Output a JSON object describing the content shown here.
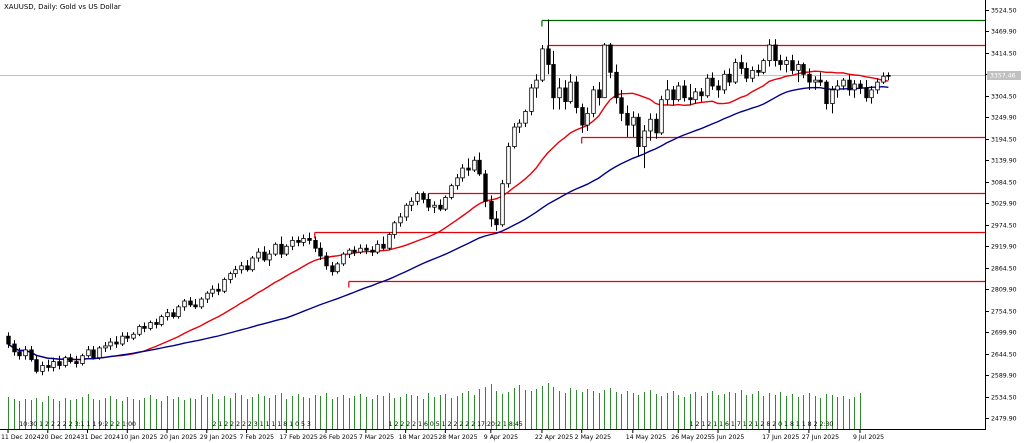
{
  "chart_data": {
    "type": "candlestick",
    "title": "XAUUSD, Daily:  Gold vs US Dollar",
    "current_price": "3357.46",
    "ylim": [
      2450,
      3550
    ],
    "y_ticks": [
      3524.5,
      3469.9,
      3414.5,
      3359.9,
      3304.5,
      3249.9,
      3194.5,
      3139.9,
      3084.5,
      3029.9,
      2974.5,
      2919.9,
      2864.5,
      2809.9,
      2754.5,
      2699.9,
      2644.5,
      2589.9,
      2534.5,
      2479.9
    ],
    "y_tick_labels": [
      "3524.50",
      "3469.90",
      "3414.50",
      "3359.90",
      "3304.50",
      "3249.90",
      "3194.50",
      "3139.90",
      "3084.50",
      "3029.90",
      "2974.50",
      "2919.90",
      "2864.50",
      "2809.90",
      "2754.50",
      "2699.90",
      "2644.50",
      "2589.90",
      "2534.50",
      "2479.90"
    ],
    "x_tick_labels": [
      "11 Dec 2024",
      "20 Dec 2024",
      "31 Dec 2024",
      "10 Jan 2025",
      "20 Jan 2025",
      "29 Jan 2025",
      "7 Feb 2025",
      "17 Feb 2025",
      "26 Feb 2025",
      "7 Mar 2025",
      "18 Mar 2025",
      "28 Mar 2025",
      "9 Apr 2025",
      "22 Apr 2025",
      "2 May 2025",
      "14 May 2025",
      "26 May 2025",
      "5 Jun 2025",
      "17 Jun 2025",
      "27 Jun 2025",
      "9 Jul 2025"
    ],
    "x_tick_index": [
      0,
      7,
      14,
      21,
      28,
      35,
      42,
      49,
      56,
      63,
      70,
      77,
      85,
      94,
      101,
      110,
      118,
      125,
      134,
      141,
      150
    ],
    "candles": [
      {
        "o": 2690,
        "h": 2700,
        "l": 2660,
        "c": 2670
      },
      {
        "o": 2670,
        "h": 2680,
        "l": 2640,
        "c": 2650
      },
      {
        "o": 2650,
        "h": 2660,
        "l": 2630,
        "c": 2640
      },
      {
        "o": 2640,
        "h": 2665,
        "l": 2630,
        "c": 2655
      },
      {
        "o": 2655,
        "h": 2665,
        "l": 2625,
        "c": 2630
      },
      {
        "o": 2630,
        "h": 2640,
        "l": 2595,
        "c": 2600
      },
      {
        "o": 2600,
        "h": 2625,
        "l": 2590,
        "c": 2615
      },
      {
        "o": 2615,
        "h": 2630,
        "l": 2600,
        "c": 2610
      },
      {
        "o": 2610,
        "h": 2635,
        "l": 2600,
        "c": 2625
      },
      {
        "o": 2625,
        "h": 2640,
        "l": 2605,
        "c": 2615
      },
      {
        "o": 2615,
        "h": 2640,
        "l": 2610,
        "c": 2635
      },
      {
        "o": 2635,
        "h": 2645,
        "l": 2620,
        "c": 2625
      },
      {
        "o": 2625,
        "h": 2640,
        "l": 2610,
        "c": 2620
      },
      {
        "o": 2620,
        "h": 2645,
        "l": 2615,
        "c": 2640
      },
      {
        "o": 2640,
        "h": 2665,
        "l": 2635,
        "c": 2655
      },
      {
        "o": 2655,
        "h": 2665,
        "l": 2630,
        "c": 2635
      },
      {
        "o": 2635,
        "h": 2665,
        "l": 2630,
        "c": 2660
      },
      {
        "o": 2660,
        "h": 2675,
        "l": 2650,
        "c": 2665
      },
      {
        "o": 2665,
        "h": 2685,
        "l": 2655,
        "c": 2675
      },
      {
        "o": 2675,
        "h": 2690,
        "l": 2660,
        "c": 2670
      },
      {
        "o": 2670,
        "h": 2700,
        "l": 2665,
        "c": 2690
      },
      {
        "o": 2690,
        "h": 2700,
        "l": 2675,
        "c": 2685
      },
      {
        "o": 2685,
        "h": 2700,
        "l": 2680,
        "c": 2695
      },
      {
        "o": 2695,
        "h": 2720,
        "l": 2690,
        "c": 2715
      },
      {
        "o": 2715,
        "h": 2725,
        "l": 2700,
        "c": 2710
      },
      {
        "o": 2710,
        "h": 2730,
        "l": 2705,
        "c": 2725
      },
      {
        "o": 2725,
        "h": 2735,
        "l": 2710,
        "c": 2720
      },
      {
        "o": 2720,
        "h": 2745,
        "l": 2715,
        "c": 2740
      },
      {
        "o": 2740,
        "h": 2760,
        "l": 2730,
        "c": 2750
      },
      {
        "o": 2750,
        "h": 2760,
        "l": 2735,
        "c": 2740
      },
      {
        "o": 2740,
        "h": 2770,
        "l": 2735,
        "c": 2765
      },
      {
        "o": 2765,
        "h": 2785,
        "l": 2755,
        "c": 2780
      },
      {
        "o": 2780,
        "h": 2790,
        "l": 2765,
        "c": 2770
      },
      {
        "o": 2770,
        "h": 2785,
        "l": 2760,
        "c": 2765
      },
      {
        "o": 2765,
        "h": 2790,
        "l": 2760,
        "c": 2785
      },
      {
        "o": 2785,
        "h": 2805,
        "l": 2775,
        "c": 2800
      },
      {
        "o": 2800,
        "h": 2820,
        "l": 2790,
        "c": 2810
      },
      {
        "o": 2810,
        "h": 2825,
        "l": 2795,
        "c": 2805
      },
      {
        "o": 2805,
        "h": 2840,
        "l": 2800,
        "c": 2835
      },
      {
        "o": 2835,
        "h": 2855,
        "l": 2825,
        "c": 2850
      },
      {
        "o": 2850,
        "h": 2870,
        "l": 2840,
        "c": 2860
      },
      {
        "o": 2860,
        "h": 2880,
        "l": 2850,
        "c": 2870
      },
      {
        "o": 2870,
        "h": 2885,
        "l": 2855,
        "c": 2860
      },
      {
        "o": 2860,
        "h": 2895,
        "l": 2855,
        "c": 2890
      },
      {
        "o": 2890,
        "h": 2915,
        "l": 2880,
        "c": 2905
      },
      {
        "o": 2905,
        "h": 2920,
        "l": 2880,
        "c": 2885
      },
      {
        "o": 2885,
        "h": 2910,
        "l": 2870,
        "c": 2900
      },
      {
        "o": 2900,
        "h": 2930,
        "l": 2895,
        "c": 2925
      },
      {
        "o": 2925,
        "h": 2945,
        "l": 2890,
        "c": 2900
      },
      {
        "o": 2900,
        "h": 2925,
        "l": 2895,
        "c": 2920
      },
      {
        "o": 2920,
        "h": 2945,
        "l": 2910,
        "c": 2935
      },
      {
        "o": 2935,
        "h": 2945,
        "l": 2920,
        "c": 2930
      },
      {
        "o": 2930,
        "h": 2950,
        "l": 2920,
        "c": 2940
      },
      {
        "o": 2940,
        "h": 2955,
        "l": 2925,
        "c": 2935
      },
      {
        "o": 2935,
        "h": 2945,
        "l": 2905,
        "c": 2915
      },
      {
        "o": 2915,
        "h": 2930,
        "l": 2885,
        "c": 2895
      },
      {
        "o": 2895,
        "h": 2905,
        "l": 2860,
        "c": 2870
      },
      {
        "o": 2870,
        "h": 2880,
        "l": 2845,
        "c": 2855
      },
      {
        "o": 2855,
        "h": 2880,
        "l": 2850,
        "c": 2875
      },
      {
        "o": 2875,
        "h": 2905,
        "l": 2870,
        "c": 2900
      },
      {
        "o": 2900,
        "h": 2915,
        "l": 2890,
        "c": 2910
      },
      {
        "o": 2910,
        "h": 2920,
        "l": 2895,
        "c": 2905
      },
      {
        "o": 2905,
        "h": 2925,
        "l": 2900,
        "c": 2915
      },
      {
        "o": 2915,
        "h": 2925,
        "l": 2900,
        "c": 2910
      },
      {
        "o": 2910,
        "h": 2920,
        "l": 2895,
        "c": 2905
      },
      {
        "o": 2905,
        "h": 2935,
        "l": 2900,
        "c": 2925
      },
      {
        "o": 2925,
        "h": 2945,
        "l": 2910,
        "c": 2915
      },
      {
        "o": 2915,
        "h": 2955,
        "l": 2910,
        "c": 2950
      },
      {
        "o": 2950,
        "h": 2985,
        "l": 2940,
        "c": 2980
      },
      {
        "o": 2980,
        "h": 3005,
        "l": 2970,
        "c": 2995
      },
      {
        "o": 2995,
        "h": 3030,
        "l": 2985,
        "c": 3025
      },
      {
        "o": 3025,
        "h": 3045,
        "l": 3010,
        "c": 3035
      },
      {
        "o": 3035,
        "h": 3060,
        "l": 3025,
        "c": 3055
      },
      {
        "o": 3055,
        "h": 3060,
        "l": 3030,
        "c": 3040
      },
      {
        "o": 3040,
        "h": 3055,
        "l": 3010,
        "c": 3020
      },
      {
        "o": 3020,
        "h": 3035,
        "l": 3005,
        "c": 3025
      },
      {
        "o": 3025,
        "h": 3040,
        "l": 3010,
        "c": 3015
      },
      {
        "o": 3015,
        "h": 3050,
        "l": 3010,
        "c": 3045
      },
      {
        "o": 3045,
        "h": 3080,
        "l": 3040,
        "c": 3075
      },
      {
        "o": 3075,
        "h": 3105,
        "l": 3065,
        "c": 3095
      },
      {
        "o": 3095,
        "h": 3130,
        "l": 3085,
        "c": 3120
      },
      {
        "o": 3120,
        "h": 3145,
        "l": 3100,
        "c": 3115
      },
      {
        "o": 3115,
        "h": 3150,
        "l": 3110,
        "c": 3140
      },
      {
        "o": 3140,
        "h": 3160,
        "l": 3100,
        "c": 3105
      },
      {
        "o": 3105,
        "h": 3115,
        "l": 3020,
        "c": 3035
      },
      {
        "o": 3035,
        "h": 3050,
        "l": 2970,
        "c": 2990
      },
      {
        "o": 2990,
        "h": 3010,
        "l": 2960,
        "c": 2975
      },
      {
        "o": 2975,
        "h": 3090,
        "l": 2970,
        "c": 3080
      },
      {
        "o": 3080,
        "h": 3185,
        "l": 3070,
        "c": 3175
      },
      {
        "o": 3175,
        "h": 3235,
        "l": 3170,
        "c": 3225
      },
      {
        "o": 3225,
        "h": 3245,
        "l": 3210,
        "c": 3235
      },
      {
        "o": 3235,
        "h": 3270,
        "l": 3225,
        "c": 3265
      },
      {
        "o": 3265,
        "h": 3335,
        "l": 3255,
        "c": 3325
      },
      {
        "o": 3325,
        "h": 3360,
        "l": 3300,
        "c": 3345
      },
      {
        "o": 3345,
        "h": 3435,
        "l": 3340,
        "c": 3425
      },
      {
        "o": 3425,
        "h": 3500,
        "l": 3360,
        "c": 3385
      },
      {
        "o": 3385,
        "h": 3420,
        "l": 3270,
        "c": 3300
      },
      {
        "o": 3300,
        "h": 3350,
        "l": 3270,
        "c": 3325
      },
      {
        "o": 3325,
        "h": 3345,
        "l": 3270,
        "c": 3290
      },
      {
        "o": 3290,
        "h": 3360,
        "l": 3285,
        "c": 3340
      },
      {
        "o": 3340,
        "h": 3355,
        "l": 3260,
        "c": 3275
      },
      {
        "o": 3275,
        "h": 3285,
        "l": 3210,
        "c": 3230
      },
      {
        "o": 3230,
        "h": 3275,
        "l": 3215,
        "c": 3260
      },
      {
        "o": 3260,
        "h": 3330,
        "l": 3250,
        "c": 3320
      },
      {
        "o": 3320,
        "h": 3340,
        "l": 3280,
        "c": 3300
      },
      {
        "o": 3300,
        "h": 3440,
        "l": 3300,
        "c": 3435
      },
      {
        "o": 3435,
        "h": 3440,
        "l": 3350,
        "c": 3365
      },
      {
        "o": 3365,
        "h": 3385,
        "l": 3285,
        "c": 3300
      },
      {
        "o": 3300,
        "h": 3320,
        "l": 3240,
        "c": 3260
      },
      {
        "o": 3260,
        "h": 3280,
        "l": 3200,
        "c": 3230
      },
      {
        "o": 3230,
        "h": 3265,
        "l": 3200,
        "c": 3250
      },
      {
        "o": 3250,
        "h": 3260,
        "l": 3150,
        "c": 3175
      },
      {
        "o": 3175,
        "h": 3230,
        "l": 3120,
        "c": 3215
      },
      {
        "o": 3215,
        "h": 3260,
        "l": 3190,
        "c": 3245
      },
      {
        "o": 3245,
        "h": 3260,
        "l": 3195,
        "c": 3210
      },
      {
        "o": 3210,
        "h": 3305,
        "l": 3205,
        "c": 3295
      },
      {
        "o": 3295,
        "h": 3345,
        "l": 3280,
        "c": 3320
      },
      {
        "o": 3320,
        "h": 3330,
        "l": 3280,
        "c": 3295
      },
      {
        "o": 3295,
        "h": 3340,
        "l": 3290,
        "c": 3330
      },
      {
        "o": 3330,
        "h": 3345,
        "l": 3290,
        "c": 3300
      },
      {
        "o": 3300,
        "h": 3335,
        "l": 3280,
        "c": 3295
      },
      {
        "o": 3295,
        "h": 3325,
        "l": 3285,
        "c": 3315
      },
      {
        "o": 3315,
        "h": 3325,
        "l": 3290,
        "c": 3305
      },
      {
        "o": 3305,
        "h": 3360,
        "l": 3300,
        "c": 3350
      },
      {
        "o": 3350,
        "h": 3365,
        "l": 3320,
        "c": 3330
      },
      {
        "o": 3330,
        "h": 3345,
        "l": 3300,
        "c": 3320
      },
      {
        "o": 3320,
        "h": 3370,
        "l": 3310,
        "c": 3360
      },
      {
        "o": 3360,
        "h": 3375,
        "l": 3330,
        "c": 3340
      },
      {
        "o": 3340,
        "h": 3400,
        "l": 3335,
        "c": 3390
      },
      {
        "o": 3390,
        "h": 3410,
        "l": 3360,
        "c": 3375
      },
      {
        "o": 3375,
        "h": 3390,
        "l": 3340,
        "c": 3350
      },
      {
        "o": 3350,
        "h": 3380,
        "l": 3340,
        "c": 3370
      },
      {
        "o": 3370,
        "h": 3385,
        "l": 3355,
        "c": 3365
      },
      {
        "o": 3365,
        "h": 3400,
        "l": 3360,
        "c": 3395
      },
      {
        "o": 3395,
        "h": 3450,
        "l": 3380,
        "c": 3435
      },
      {
        "o": 3435,
        "h": 3450,
        "l": 3380,
        "c": 3395
      },
      {
        "o": 3395,
        "h": 3410,
        "l": 3370,
        "c": 3385
      },
      {
        "o": 3385,
        "h": 3405,
        "l": 3365,
        "c": 3395
      },
      {
        "o": 3395,
        "h": 3410,
        "l": 3360,
        "c": 3370
      },
      {
        "o": 3370,
        "h": 3395,
        "l": 3340,
        "c": 3385
      },
      {
        "o": 3385,
        "h": 3390,
        "l": 3350,
        "c": 3360
      },
      {
        "o": 3360,
        "h": 3375,
        "l": 3320,
        "c": 3340
      },
      {
        "o": 3340,
        "h": 3355,
        "l": 3320,
        "c": 3345
      },
      {
        "o": 3345,
        "h": 3365,
        "l": 3330,
        "c": 3340
      },
      {
        "o": 3340,
        "h": 3345,
        "l": 3270,
        "c": 3285
      },
      {
        "o": 3285,
        "h": 3330,
        "l": 3260,
        "c": 3320
      },
      {
        "o": 3320,
        "h": 3345,
        "l": 3300,
        "c": 3330
      },
      {
        "o": 3330,
        "h": 3350,
        "l": 3320,
        "c": 3345
      },
      {
        "o": 3345,
        "h": 3360,
        "l": 3305,
        "c": 3320
      },
      {
        "o": 3320,
        "h": 3345,
        "l": 3300,
        "c": 3335
      },
      {
        "o": 3335,
        "h": 3345,
        "l": 3310,
        "c": 3325
      },
      {
        "o": 3325,
        "h": 3345,
        "l": 3290,
        "c": 3300
      },
      {
        "o": 3300,
        "h": 3330,
        "l": 3285,
        "c": 3320
      },
      {
        "o": 3320,
        "h": 3350,
        "l": 3310,
        "c": 3340
      },
      {
        "o": 3340,
        "h": 3365,
        "l": 3335,
        "c": 3355
      },
      {
        "o": 3355,
        "h": 3365,
        "l": 3345,
        "c": 3357
      }
    ],
    "moving_averages": [
      {
        "color": "#e8000b",
        "period": 20
      },
      {
        "color": "#00008b",
        "period": 50
      }
    ],
    "horizontal_levels": [
      {
        "price": 3500.0,
        "from_index": 94,
        "color": "#006400"
      },
      {
        "price": 3435.0,
        "from_index": 95,
        "color": "#e8000b"
      },
      {
        "price": 3200.0,
        "from_index": 101,
        "color": "#e8000b"
      },
      {
        "price": 3057.0,
        "from_index": 74,
        "color": "#e8000b"
      },
      {
        "price": 2956.0,
        "from_index": 54,
        "color": "#e8000b"
      },
      {
        "price": 2832.0,
        "from_index": 60,
        "color": "#e8000b"
      }
    ],
    "volumes": [
      32,
      30,
      28,
      30,
      29,
      31,
      27,
      33,
      30,
      28,
      31,
      29,
      30,
      32,
      35,
      30,
      29,
      31,
      33,
      30,
      28,
      32,
      30,
      29,
      31,
      34,
      30,
      28,
      33,
      30,
      32,
      29,
      31,
      30,
      34,
      32,
      35,
      30,
      33,
      31,
      36,
      34,
      30,
      32,
      35,
      33,
      31,
      34,
      36,
      30,
      33,
      35,
      32,
      31,
      34,
      33,
      36,
      30,
      32,
      34,
      31,
      33,
      35,
      32,
      30,
      34,
      33,
      36,
      31,
      32,
      35,
      34,
      33,
      30,
      36,
      32,
      34,
      35,
      31,
      33,
      36,
      38,
      34,
      40,
      42,
      45,
      38,
      35,
      37,
      41,
      44,
      39,
      38,
      40,
      43,
      46,
      42,
      38,
      36,
      41,
      39,
      37,
      40,
      38,
      36,
      39,
      41,
      37,
      35,
      38,
      36,
      34,
      37,
      39,
      35,
      33,
      36,
      38,
      34,
      32,
      35,
      37,
      33,
      36,
      38,
      34,
      35,
      37,
      36,
      39,
      34,
      35,
      38,
      33,
      36,
      34,
      37,
      33,
      35,
      32,
      34,
      36,
      33,
      31,
      35,
      34,
      32,
      33,
      30,
      32,
      36
    ],
    "colors": {
      "up_candle": "#ffffff",
      "down_candle": "#000000",
      "wick": "#000000",
      "volume": "#2e8b2e",
      "grid": "#c0c0c0",
      "price_line": "#c0c0c0",
      "price_label_bg": "#c0c0c0"
    },
    "volume_strip_labels": [
      {
        "index": 2,
        "text": "10:30 1 2 2 2 2 2 3:1 1 1 9:2 2 2 1:00"
      },
      {
        "index": 36,
        "text": "2 1 2 2 2 2 2 3 1 1 1 1 8 1 0 5 3"
      },
      {
        "index": 67,
        "text": "1 2 2 2 2 1 6 0 5 1 2 2 2 2 2 17:20:2 1 8:45"
      },
      {
        "index": 120,
        "text": "1 2 1 2 1 1 6 1 7 1 2 1 2 8 2 0 1 8 1 1 8 2 2:30"
      }
    ]
  }
}
